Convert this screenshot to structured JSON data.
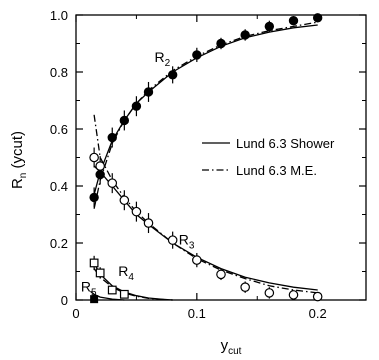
{
  "chart_data": {
    "type": "scatter",
    "xlabel": "y",
    "xlabel_sub": "cut",
    "ylabel": "R",
    "ylabel_sub": "n",
    "ylabel_suffix": " (ycut)",
    "xlim": [
      0,
      0.24
    ],
    "ylim": [
      0,
      1.0
    ],
    "x_ticks": [
      0,
      0.1,
      0.2
    ],
    "x_tick_labels": [
      "0",
      "0.1",
      "0.2"
    ],
    "y_ticks": [
      0,
      0.2,
      0.4,
      0.6,
      0.8,
      1.0
    ],
    "y_tick_labels": [
      "0",
      "0.2",
      "0.4",
      "0.6",
      "0.8",
      "1.0"
    ],
    "legend": {
      "position": "center-right",
      "entries": [
        {
          "label": "Lund 6.3 Shower",
          "style": "solid"
        },
        {
          "label": "Lund 6.3 M.E.",
          "style": "dashdot"
        }
      ]
    },
    "curve_labels": [
      {
        "text": "R",
        "sub": "2",
        "x": 0.065,
        "y": 0.835
      },
      {
        "text": "R",
        "sub": "3",
        "x": 0.085,
        "y": 0.195
      },
      {
        "text": "R",
        "sub": "4",
        "x": 0.035,
        "y": 0.085
      },
      {
        "text": "R",
        "sub": "5",
        "x": 0.004,
        "y": 0.03
      }
    ],
    "series": [
      {
        "id": "R2",
        "marker": "filled-circle",
        "x": [
          0.015,
          0.02,
          0.03,
          0.04,
          0.05,
          0.06,
          0.08,
          0.1,
          0.12,
          0.14,
          0.16,
          0.18,
          0.2
        ],
        "y": [
          0.36,
          0.44,
          0.57,
          0.63,
          0.68,
          0.73,
          0.79,
          0.86,
          0.9,
          0.93,
          0.96,
          0.98,
          0.99
        ],
        "err": [
          0.035,
          0.035,
          0.035,
          0.035,
          0.035,
          0.035,
          0.03,
          0.025,
          0.02,
          0.02,
          0.02,
          0.015,
          0.012
        ]
      },
      {
        "id": "R3",
        "marker": "open-circle",
        "x": [
          0.015,
          0.02,
          0.03,
          0.04,
          0.05,
          0.06,
          0.08,
          0.1,
          0.12,
          0.14,
          0.16,
          0.18,
          0.2
        ],
        "y": [
          0.5,
          0.47,
          0.41,
          0.35,
          0.31,
          0.27,
          0.21,
          0.14,
          0.09,
          0.045,
          0.025,
          0.018,
          0.012
        ],
        "err": [
          0.035,
          0.035,
          0.035,
          0.035,
          0.035,
          0.035,
          0.03,
          0.025,
          0.02,
          0.02,
          0.02,
          0.012,
          0.01
        ]
      },
      {
        "id": "R4",
        "marker": "open-square",
        "x": [
          0.015,
          0.02,
          0.03,
          0.04
        ],
        "y": [
          0.13,
          0.095,
          0.035,
          0.02
        ],
        "err": [
          0.025,
          0.02,
          0.01,
          0.008
        ]
      },
      {
        "id": "R5",
        "marker": "filled-square",
        "x": [
          0.015
        ],
        "y": [
          0.003
        ],
        "err": [
          0.0
        ]
      }
    ],
    "curves": [
      {
        "id": "R2-shower",
        "style": "solid",
        "x": [
          0.015,
          0.02,
          0.03,
          0.04,
          0.05,
          0.06,
          0.08,
          0.1,
          0.12,
          0.14,
          0.16,
          0.18,
          0.2
        ],
        "y": [
          0.37,
          0.45,
          0.56,
          0.63,
          0.69,
          0.73,
          0.8,
          0.85,
          0.89,
          0.92,
          0.94,
          0.955,
          0.965
        ]
      },
      {
        "id": "R2-me",
        "style": "dashdot",
        "x": [
          0.015,
          0.02,
          0.03,
          0.04,
          0.05,
          0.06,
          0.08,
          0.1,
          0.12,
          0.14,
          0.16,
          0.18,
          0.2
        ],
        "y": [
          0.32,
          0.42,
          0.55,
          0.63,
          0.69,
          0.735,
          0.805,
          0.855,
          0.895,
          0.925,
          0.945,
          0.96,
          0.975
        ]
      },
      {
        "id": "R3-shower",
        "style": "solid",
        "x": [
          0.015,
          0.02,
          0.03,
          0.04,
          0.05,
          0.06,
          0.08,
          0.1,
          0.12,
          0.14,
          0.16,
          0.18,
          0.2
        ],
        "y": [
          0.47,
          0.45,
          0.4,
          0.35,
          0.3,
          0.265,
          0.2,
          0.15,
          0.11,
          0.08,
          0.06,
          0.045,
          0.035
        ]
      },
      {
        "id": "R3-me",
        "style": "dashdot",
        "x": [
          0.015,
          0.02,
          0.03,
          0.04,
          0.05,
          0.06,
          0.08,
          0.1,
          0.12,
          0.14,
          0.16,
          0.18,
          0.2
        ],
        "y": [
          0.65,
          0.5,
          0.42,
          0.36,
          0.31,
          0.27,
          0.2,
          0.145,
          0.105,
          0.075,
          0.05,
          0.035,
          0.025
        ]
      },
      {
        "id": "R4-shower",
        "style": "solid",
        "x": [
          0.015,
          0.02,
          0.03,
          0.04,
          0.05,
          0.06,
          0.07,
          0.08
        ],
        "y": [
          0.13,
          0.09,
          0.05,
          0.028,
          0.015,
          0.007,
          0.003,
          0.0
        ]
      },
      {
        "id": "R4-me",
        "style": "dashdot",
        "x": [
          0.015,
          0.02,
          0.03,
          0.04,
          0.05,
          0.06,
          0.07,
          0.08
        ],
        "y": [
          0.11,
          0.08,
          0.045,
          0.025,
          0.013,
          0.006,
          0.002,
          0.0
        ]
      },
      {
        "id": "R5-shower",
        "style": "solid",
        "x": [
          0.012,
          0.015,
          0.02,
          0.03,
          0.04
        ],
        "y": [
          0.03,
          0.02,
          0.01,
          0.003,
          0.0
        ]
      }
    ]
  }
}
